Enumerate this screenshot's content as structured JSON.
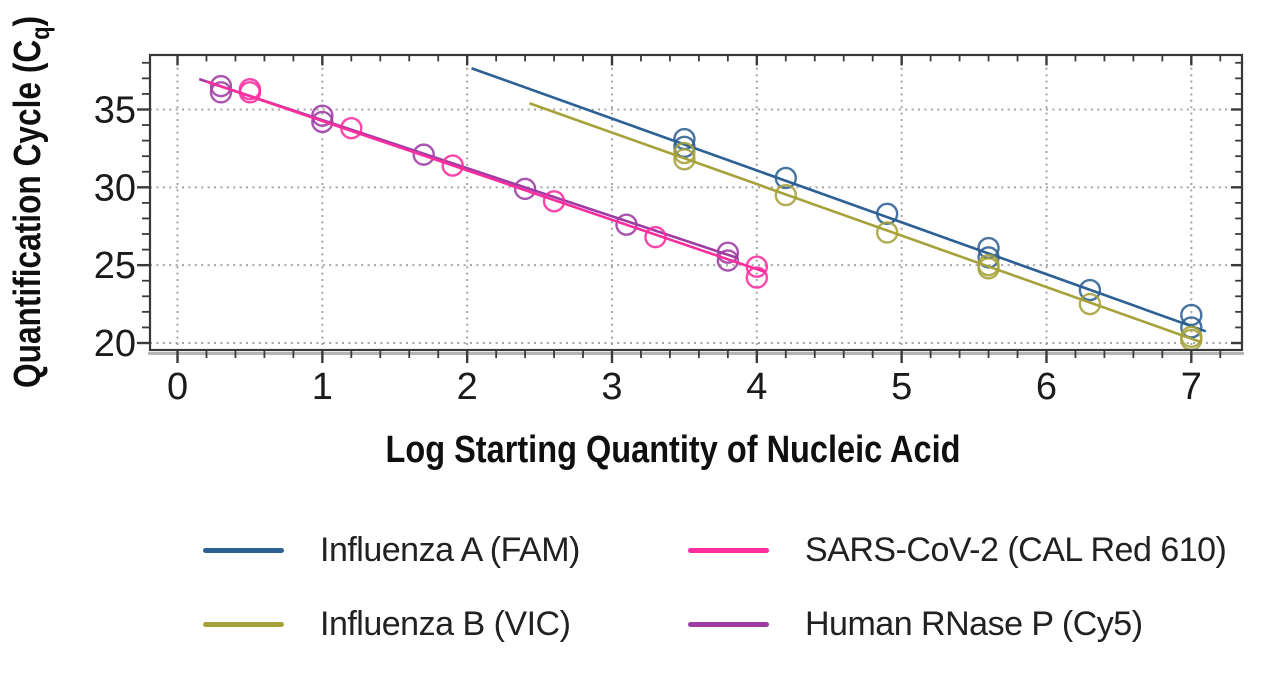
{
  "chart_data": {
    "type": "scatter",
    "title": "",
    "xlabel": "Log Starting Quantity of Nucleic Acid",
    "ylabel": "Quantification Cycle (Cq)",
    "ylabel_parts": {
      "main": "Quantification Cycle (C",
      "sub": "q",
      "close": ")"
    },
    "xlim": [
      -0.19,
      7.35
    ],
    "ylim": [
      19.55,
      38.5
    ],
    "x_ticks": [
      0,
      1,
      2,
      3,
      4,
      5,
      6,
      7
    ],
    "x_tick_labels": [
      "0",
      "1",
      "2",
      "3",
      "4",
      "5",
      "6",
      "7"
    ],
    "y_ticks": [
      20,
      25,
      30,
      35
    ],
    "y_tick_labels": [
      "20",
      "25",
      "30",
      "35"
    ],
    "x_minor_step": 0.2,
    "y_minor_step": 1,
    "grid": {
      "style": "dotted",
      "color": "#9a9a9a",
      "x_at": [
        0,
        1,
        2,
        3,
        4,
        5,
        6,
        7
      ],
      "y_at": [
        20,
        25,
        30,
        35
      ]
    },
    "legend_position": "bottom",
    "marker": "open-circle",
    "series": [
      {
        "id": "influenza-a",
        "name": "Influenza A (FAM)",
        "color": "#2d6094",
        "points": [
          [
            3.5,
            33.1
          ],
          [
            3.5,
            32.6
          ],
          [
            4.2,
            30.6
          ],
          [
            4.9,
            28.3
          ],
          [
            5.6,
            26.1
          ],
          [
            5.6,
            25.5
          ],
          [
            6.3,
            23.4
          ],
          [
            7.0,
            21.8
          ],
          [
            7.0,
            21.0
          ]
        ],
        "trendline": [
          [
            2.03,
            37.65
          ],
          [
            7.1,
            20.75
          ]
        ]
      },
      {
        "id": "sars-cov-2",
        "name": "SARS-CoV-2 (CAL Red 610)",
        "color": "#fc2d9e",
        "points": [
          [
            0.5,
            36.3
          ],
          [
            0.5,
            36.1
          ],
          [
            1.2,
            33.8
          ],
          [
            1.9,
            31.4
          ],
          [
            2.6,
            29.1
          ],
          [
            3.3,
            26.8
          ],
          [
            4.0,
            24.9
          ],
          [
            4.0,
            24.2
          ]
        ],
        "trendline": [
          [
            0.2,
            36.8
          ],
          [
            4.06,
            24.55
          ]
        ]
      },
      {
        "id": "influenza-b",
        "name": "Influenza B (VIC)",
        "color": "#a6a23a",
        "points": [
          [
            3.5,
            32.2
          ],
          [
            3.5,
            31.8
          ],
          [
            4.2,
            29.5
          ],
          [
            4.9,
            27.1
          ],
          [
            5.6,
            25.0
          ],
          [
            5.6,
            24.8
          ],
          [
            6.3,
            22.5
          ],
          [
            7.0,
            20.4
          ],
          [
            7.0,
            20.2
          ]
        ],
        "trendline": [
          [
            2.43,
            35.4
          ],
          [
            7.07,
            20.05
          ]
        ]
      },
      {
        "id": "human-rnase-p",
        "name": "Human RNase P (Cy5)",
        "color": "#9d3ca3",
        "points": [
          [
            0.3,
            36.5
          ],
          [
            0.3,
            36.1
          ],
          [
            1.0,
            34.6
          ],
          [
            1.0,
            34.2
          ],
          [
            1.7,
            32.1
          ],
          [
            2.4,
            29.9
          ],
          [
            3.1,
            27.6
          ],
          [
            3.8,
            25.8
          ],
          [
            3.8,
            25.3
          ]
        ],
        "trendline": [
          [
            0.15,
            36.95
          ],
          [
            3.87,
            25.45
          ]
        ]
      }
    ]
  }
}
